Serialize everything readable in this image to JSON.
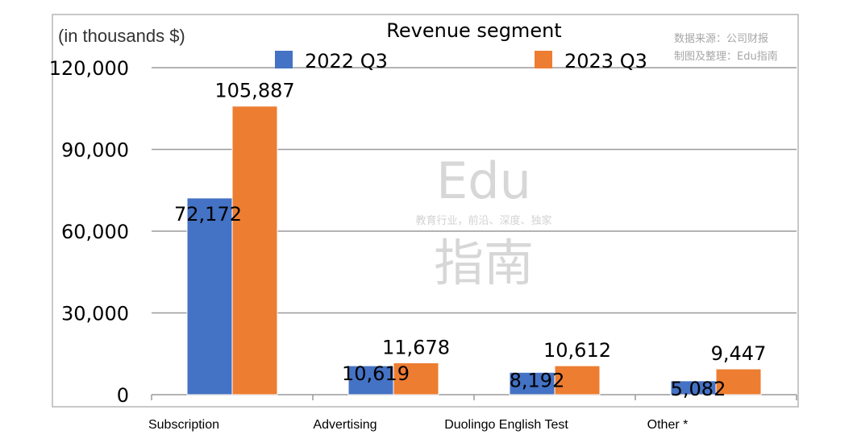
{
  "chart_data": {
    "type": "bar",
    "title": "Revenue segment",
    "ylabel": "(in thousands $)",
    "categories": [
      "Subscription",
      "Advertising",
      "Duolingo English Test",
      "Other *"
    ],
    "series": [
      {
        "name": "2022 Q3",
        "color": "#4472c4",
        "values": [
          72172,
          10619,
          8192,
          5082
        ]
      },
      {
        "name": "2023 Q3",
        "color": "#ed7d31",
        "values": [
          105887,
          11678,
          10612,
          9447
        ]
      }
    ],
    "value_labels": [
      [
        "72,172",
        "10,619",
        "8,192",
        "5,082"
      ],
      [
        "105,887",
        "11,678",
        "10,612",
        "9,447"
      ]
    ],
    "ylim": [
      0,
      120000
    ],
    "yticks": [
      0,
      30000,
      60000,
      90000,
      120000
    ],
    "ytick_labels": [
      "0",
      "30,000",
      "60,000",
      "90,000",
      "120,000"
    ],
    "grid": true,
    "legend_position": "top-center"
  },
  "source_note": [
    "数据来源：公司财报",
    "制图及整理：Edu指南"
  ],
  "watermark": {
    "top": "Edu",
    "middle": "教育行业，前沿、深度、独家",
    "bottom": "指南"
  }
}
